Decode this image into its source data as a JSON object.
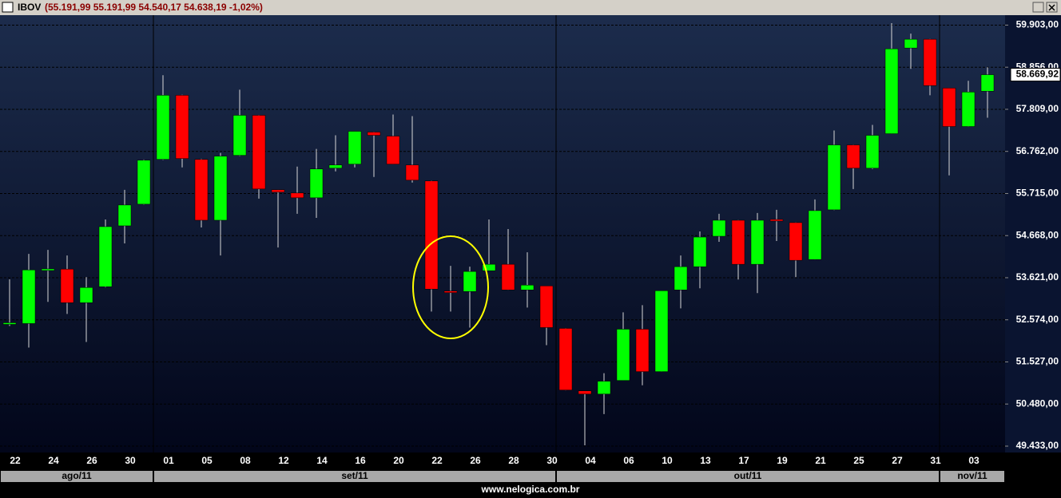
{
  "chart_data": {
    "type": "candlestick",
    "title": "IBOV",
    "subtitle": "(55.191,99 55.191,99 54.540,17 54.638,19 -1,02%)",
    "footer": "www.nelogica.com.br",
    "up_color": "#00ff00",
    "down_color": "#ff0000",
    "grid": true,
    "categories": [
      "22",
      null,
      "24",
      null,
      "26",
      null,
      "30",
      null,
      "01",
      null,
      "05",
      null,
      "08",
      null,
      "12",
      null,
      "14",
      null,
      "16",
      null,
      "20",
      null,
      "22",
      null,
      "26",
      null,
      "28",
      null,
      "30",
      null,
      "04",
      null,
      "06",
      null,
      "10",
      null,
      "13",
      null,
      "17",
      null,
      "19",
      null,
      "21",
      null,
      "25",
      null,
      "27",
      null,
      "31",
      null,
      "03",
      null
    ],
    "months": [
      "ago/11",
      "set/11",
      "out/11",
      "nov/11"
    ],
    "open": [
      52480,
      52481,
      53820,
      53835,
      52999,
      53397,
      54911,
      55449,
      56564,
      58158,
      56564,
      55050,
      56664,
      57660,
      55807,
      55728,
      55608,
      56345,
      56445,
      57242,
      57142,
      56425,
      56027,
      53290,
      53278,
      53795,
      53955,
      53317,
      53417,
      52361,
      50807,
      50728,
      51066,
      52341,
      51286,
      53317,
      53895,
      54652,
      55050,
      53955,
      55070,
      54991,
      54074,
      55309,
      56923,
      56345,
      57202,
      59333,
      59552,
      58337,
      57381,
      58258
    ],
    "high": [
      53580,
      54214,
      54313,
      54174,
      53636,
      55070,
      55807,
      56560,
      58656,
      58170,
      56580,
      56724,
      58297,
      57670,
      55810,
      56385,
      56823,
      57162,
      57262,
      57250,
      57680,
      57640,
      56040,
      53915,
      53895,
      55070,
      54831,
      54254,
      53420,
      52370,
      50810,
      51246,
      52760,
      52939,
      53297,
      54174,
      54772,
      55210,
      55060,
      55230,
      55309,
      55000,
      55568,
      57281,
      56930,
      57421,
      59951,
      59692,
      59560,
      58340,
      58517,
      58855
    ],
    "low": [
      52420,
      51883,
      53019,
      52720,
      52023,
      53380,
      54473,
      55440,
      56550,
      56365,
      54871,
      54174,
      56650,
      55588,
      54373,
      55210,
      55110,
      56266,
      56365,
      56126,
      56440,
      55987,
      52780,
      52780,
      52381,
      53790,
      53310,
      52879,
      51943,
      50820,
      49453,
      50230,
      51060,
      50947,
      51280,
      52859,
      53357,
      54513,
      53576,
      53238,
      54533,
      53636,
      54070,
      55300,
      55827,
      56325,
      57200,
      58815,
      58158,
      56166,
      57375,
      57600
    ],
    "close": [
      52500,
      53815,
      53840,
      52999,
      53377,
      54891,
      55429,
      56544,
      58158,
      56584,
      55050,
      56644,
      57660,
      55827,
      55748,
      55608,
      56325,
      56425,
      57262,
      57162,
      56445,
      56046,
      53337,
      53270,
      53776,
      53955,
      53317,
      53437,
      52381,
      50827,
      50728,
      51047,
      52341,
      51286,
      53297,
      53895,
      54632,
      55050,
      53955,
      55050,
      55031,
      54054,
      55289,
      56923,
      56345,
      57162,
      59313,
      59552,
      58397,
      57381,
      58238,
      58669.92
    ],
    "last_price": {
      "value": 58669.92,
      "label": "58.669,92"
    },
    "ylim": [
      49274,
      60150
    ],
    "yticks": [
      {
        "value": 49433,
        "label": "49.433,00"
      },
      {
        "value": 50480,
        "label": "50.480,00"
      },
      {
        "value": 51527,
        "label": "51.527,00"
      },
      {
        "value": 52574,
        "label": "52.574,00"
      },
      {
        "value": 53621,
        "label": "53.621,00"
      },
      {
        "value": 54668,
        "label": "54.668,00"
      },
      {
        "value": 55715,
        "label": "55.715,00"
      },
      {
        "value": 56762,
        "label": "56.762,00"
      },
      {
        "value": 57809,
        "label": "57.809,00"
      },
      {
        "value": 58856,
        "label": "58.856,00"
      },
      {
        "value": 59903,
        "label": "59.903,00"
      }
    ]
  }
}
